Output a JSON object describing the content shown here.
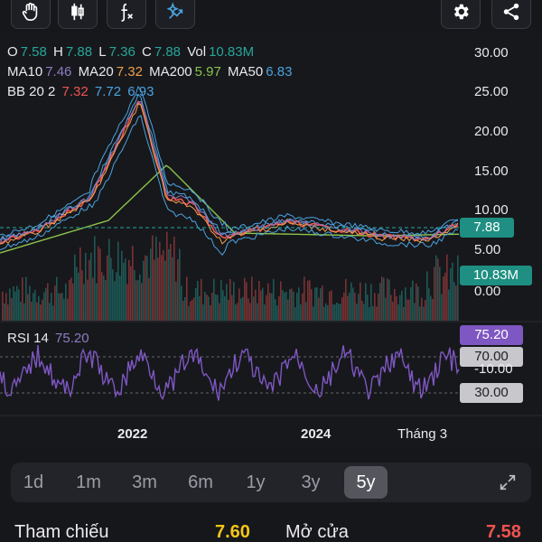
{
  "ohlc": {
    "o_label": "O",
    "o": "7.58",
    "h_label": "H",
    "h": "7.88",
    "l_label": "L",
    "l": "7.36",
    "c_label": "C",
    "c": "7.88",
    "vol_label": "Vol",
    "vol": "10.83M"
  },
  "ma": {
    "ma10_label": "MA10",
    "ma10": "7.46",
    "ma20_label": "MA20",
    "ma20": "7.32",
    "ma200_label": "MA200",
    "ma200": "5.97",
    "ma50_label": "MA50",
    "ma50": "6.83"
  },
  "bb": {
    "label": "BB 20 2",
    "v1": "7.32",
    "v2": "7.72",
    "v3": "6.93"
  },
  "rsi": {
    "label": "RSI 14",
    "value": "75.20"
  },
  "price_axis": [
    "30.00",
    "25.00",
    "20.00",
    "15.00",
    "10.00",
    "5.00",
    "0.00"
  ],
  "rsi_axis": [
    "70.00",
    "-10.00",
    "30.00"
  ],
  "tags": {
    "price": "7.88",
    "volume": "10.83M",
    "rsi": "75.20",
    "rsi_high": "70.00",
    "rsi_low": "30.00"
  },
  "x_labels": [
    "2022",
    "2024",
    "Tháng 3"
  ],
  "ranges": [
    "1d",
    "1m",
    "3m",
    "6m",
    "1y",
    "3y",
    "5y"
  ],
  "active_range": "5y",
  "stats": {
    "ref_label": "Tham chiếu",
    "ref_value": "7.60",
    "open_label": "Mở cửa",
    "open_value": "7.58"
  },
  "colors": {
    "teal": "#26a69a",
    "red": "#ef5350",
    "purple": "#7e57c2",
    "orange": "#f0a04b",
    "green": "#8bc34a",
    "blue": "#4aa3df",
    "yellow": "#f5c518"
  }
}
